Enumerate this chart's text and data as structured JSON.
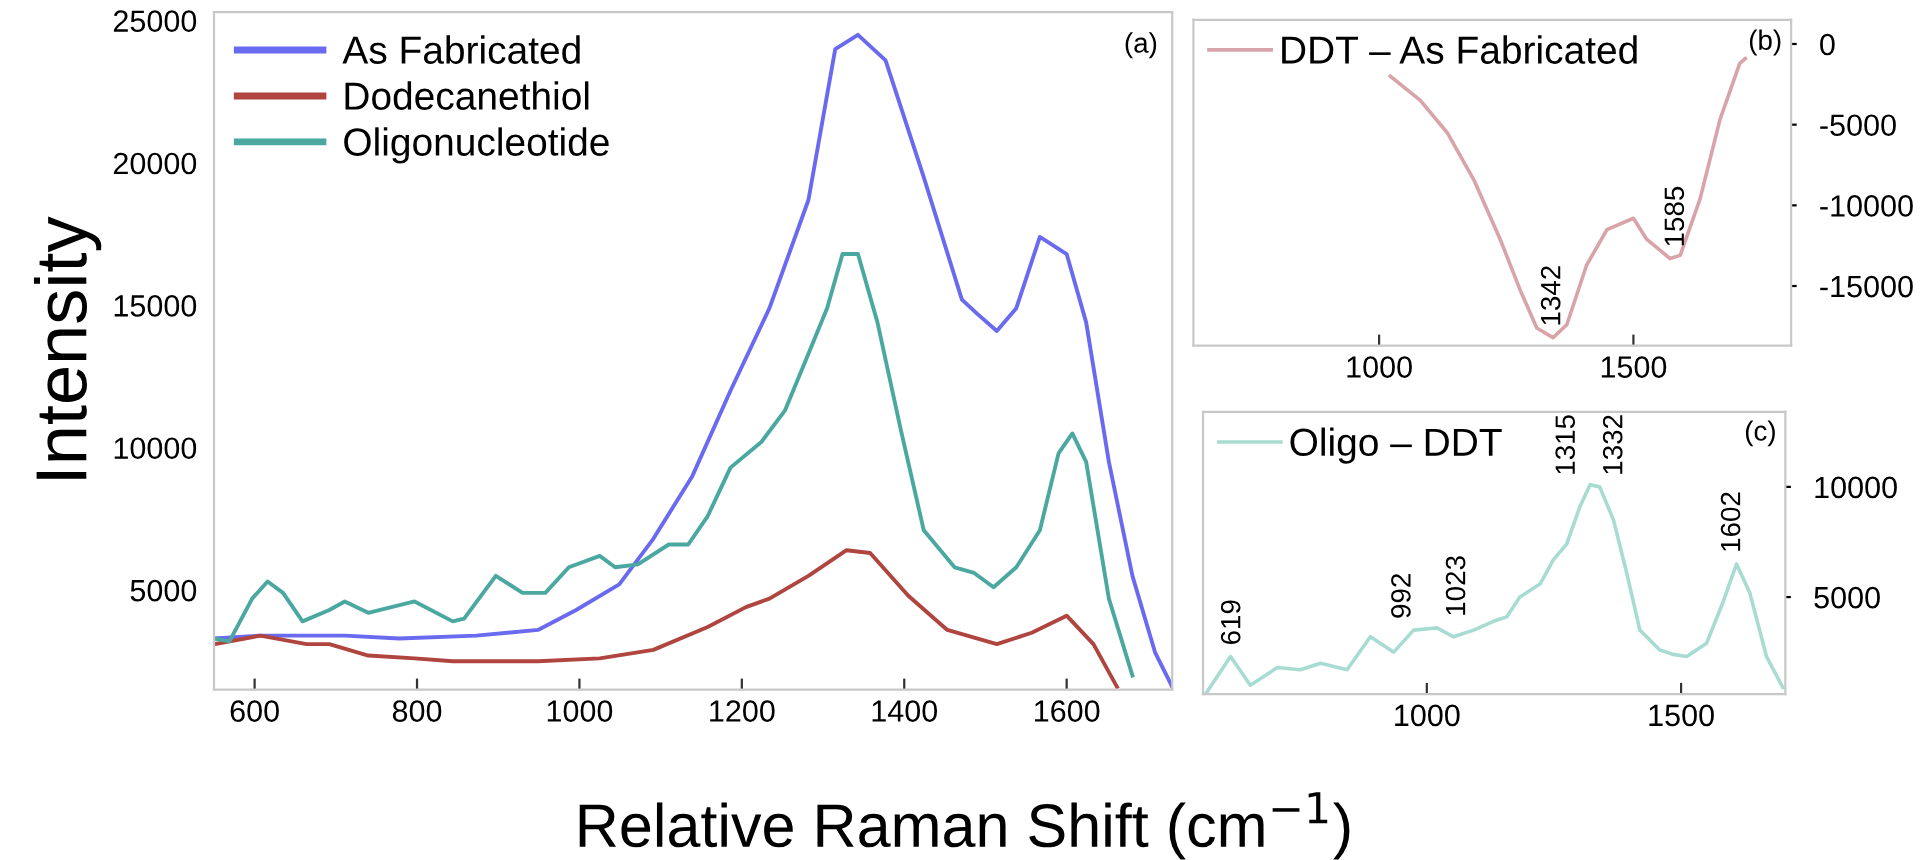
{
  "chart_data": [
    {
      "type": "line",
      "xlabel": "Relative Raman Shift (cm$^{−1}$)",
      "ylabel": "Intensity",
      "xlim": [
        550,
        1730
      ],
      "ylim": [
        1500,
        25300
      ],
      "xticks": [
        600,
        800,
        1000,
        1200,
        1400,
        1600
      ],
      "yticks": [
        5000,
        10000,
        15000,
        20000,
        25000
      ],
      "legend": "top left",
      "grid": false,
      "annotations": [
        "(a)"
      ],
      "series": [
        {
          "name": "As Fabricated",
          "color": "#6a6af0",
          "x": [
            550,
            607,
            711,
            778,
            873,
            949,
            996,
            1049,
            1091,
            1139,
            1186,
            1234,
            1282,
            1315,
            1343,
            1377,
            1424,
            1471,
            1490,
            1514,
            1538,
            1567,
            1600,
            1624,
            1652,
            1681,
            1709,
            1730
          ],
          "values": [
            3300,
            3400,
            3400,
            3300,
            3400,
            3600,
            4300,
            5200,
            6800,
            9000,
            12000,
            14900,
            18700,
            24000,
            24500,
            23600,
            19500,
            15200,
            14700,
            14100,
            14900,
            17400,
            16800,
            14400,
            9500,
            5500,
            2800,
            1600
          ]
        },
        {
          "name": "Dodecanethiol",
          "color": "#b0453f",
          "x": [
            550,
            607,
            664,
            692,
            740,
            797,
            844,
            949,
            1025,
            1091,
            1158,
            1205,
            1234,
            1282,
            1329,
            1358,
            1405,
            1453,
            1514,
            1557,
            1600,
            1633,
            1662
          ],
          "values": [
            3100,
            3400,
            3100,
            3100,
            2700,
            2600,
            2500,
            2500,
            2600,
            2900,
            3700,
            4400,
            4700,
            5500,
            6400,
            6300,
            4800,
            3600,
            3100,
            3500,
            4100,
            3100,
            1600
          ]
        },
        {
          "name": "Oligonucleotide",
          "color": "#4aa8a0",
          "x": [
            550,
            569,
            597,
            616,
            635,
            659,
            692,
            711,
            740,
            797,
            844,
            858,
            897,
            930,
            958,
            987,
            1025,
            1044,
            1072,
            1110,
            1134,
            1158,
            1186,
            1224,
            1253,
            1282,
            1305,
            1324,
            1343,
            1367,
            1396,
            1424,
            1462,
            1486,
            1510,
            1538,
            1567,
            1590,
            1607,
            1624,
            1652,
            1681
          ],
          "values": [
            3300,
            3200,
            4700,
            5300,
            4900,
            3900,
            4300,
            4600,
            4200,
            4600,
            3900,
            4000,
            5500,
            4900,
            4900,
            5800,
            6200,
            5800,
            5900,
            6600,
            6600,
            7600,
            9300,
            10200,
            11300,
            13300,
            14900,
            16800,
            16800,
            14400,
            10600,
            7100,
            5800,
            5600,
            5100,
            5800,
            7100,
            9800,
            10500,
            9500,
            4700,
            2000
          ]
        }
      ]
    },
    {
      "type": "line",
      "xlim": [
        635,
        1810
      ],
      "ylim": [
        -18700,
        1500
      ],
      "xticks": [
        1000,
        1500
      ],
      "yticks": [
        0,
        -5000,
        -10000,
        -15000
      ],
      "legend": "top left",
      "grid": false,
      "annotations": [
        {
          "text": "1342",
          "x": 1342,
          "y": -18200
        },
        {
          "text": "1585",
          "x": 1585,
          "y": -13300
        },
        "(b)"
      ],
      "series": [
        {
          "name": "DDT – As Fabricated",
          "color": "#d9a3aa",
          "x": [
            1022,
            1081,
            1134,
            1186,
            1238,
            1278,
            1310,
            1342,
            1369,
            1408,
            1448,
            1500,
            1526,
            1572,
            1592,
            1631,
            1670,
            1709,
            1720
          ],
          "values": [
            -2000,
            -3500,
            -5500,
            -8400,
            -12100,
            -15300,
            -17600,
            -18200,
            -17400,
            -13700,
            -11500,
            -10800,
            -12100,
            -13300,
            -13100,
            -9600,
            -4700,
            -1200,
            -900
          ]
        }
      ]
    },
    {
      "type": "line",
      "xlim": [
        560,
        1705
      ],
      "ylim": [
        600,
        13400
      ],
      "xticks": [
        1000,
        1500
      ],
      "yticks": [
        5000,
        10000
      ],
      "legend": "top left",
      "grid": false,
      "annotations": [
        {
          "text": "619",
          "x": 619,
          "y": 2300
        },
        {
          "text": "992",
          "x": 992,
          "y": 3500
        },
        {
          "text": "1023",
          "x": 1023,
          "y": 3600
        },
        {
          "text": "1315",
          "x": 1315,
          "y": 10000
        },
        {
          "text": "1332",
          "x": 1332,
          "y": 10000
        },
        {
          "text": "1602",
          "x": 1602,
          "y": 6500
        },
        "(c)"
      ],
      "series": [
        {
          "name": "Oligo – DDT",
          "color": "#a8dcd2",
          "x": [
            565,
            614,
            653,
            706,
            751,
            791,
            843,
            889,
            935,
            974,
            1020,
            1052,
            1092,
            1131,
            1157,
            1183,
            1223,
            1249,
            1275,
            1301,
            1321,
            1340,
            1367,
            1393,
            1419,
            1458,
            1484,
            1511,
            1550,
            1583,
            1609,
            1635,
            1668,
            1700
          ],
          "values": [
            600,
            2300,
            1000,
            1800,
            1700,
            2000,
            1700,
            3200,
            2500,
            3500,
            3600,
            3200,
            3500,
            3900,
            4100,
            5000,
            5600,
            6700,
            7400,
            9100,
            10100,
            10000,
            8500,
            6100,
            3500,
            2600,
            2400,
            2300,
            2900,
            4800,
            6500,
            5200,
            2300,
            900
          ]
        }
      ]
    }
  ]
}
